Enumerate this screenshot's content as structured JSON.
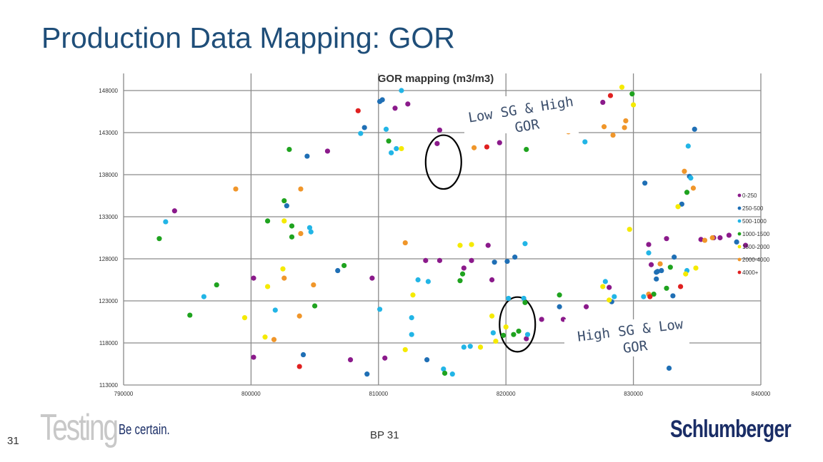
{
  "slide": {
    "title": "Production Data Mapping: GOR",
    "page_number": "31",
    "footer_center": "BP   31",
    "footer_logo_word": "Testing",
    "footer_tagline": "Be certain.",
    "brand": "Schlumberger"
  },
  "chart_data": {
    "type": "scatter",
    "title": "GOR mapping (m3/m3)",
    "xlabel": "",
    "ylabel": "",
    "xlim": [
      790000,
      840000
    ],
    "ylim": [
      113000,
      148000
    ],
    "x_ticks": [
      "790000",
      "800000",
      "810000",
      "820000",
      "830000",
      "840000"
    ],
    "y_ticks": [
      "113000",
      "118000",
      "123000",
      "128000",
      "133000",
      "138000",
      "143000",
      "148000"
    ],
    "grid": true,
    "legend_position": "right",
    "series": [
      {
        "name": "0-250",
        "color": "#8b1a8b",
        "points": [
          [
            794000,
            133700
          ],
          [
            800200,
            125700
          ],
          [
            800200,
            116300
          ],
          [
            806000,
            140800
          ],
          [
            807800,
            116000
          ],
          [
            809500,
            125700
          ],
          [
            810500,
            116200
          ],
          [
            811300,
            145900
          ],
          [
            812300,
            146400
          ],
          [
            813700,
            127800
          ],
          [
            814800,
            127800
          ],
          [
            814800,
            143300
          ],
          [
            814600,
            141700
          ],
          [
            816700,
            126900
          ],
          [
            817300,
            127800
          ],
          [
            818600,
            129600
          ],
          [
            818900,
            125500
          ],
          [
            819500,
            141800
          ],
          [
            821600,
            118500
          ],
          [
            822800,
            120800
          ],
          [
            824500,
            120800
          ],
          [
            826300,
            122300
          ],
          [
            827600,
            146600
          ],
          [
            828100,
            124600
          ],
          [
            831200,
            129700
          ],
          [
            831400,
            127300
          ],
          [
            832600,
            130400
          ],
          [
            835300,
            130300
          ],
          [
            836300,
            130500
          ],
          [
            836800,
            130500
          ],
          [
            837500,
            130800
          ],
          [
            838800,
            129600
          ]
        ]
      },
      {
        "name": "250-500",
        "color": "#1f6fb5",
        "points": [
          [
            802800,
            134300
          ],
          [
            804100,
            116600
          ],
          [
            804400,
            140200
          ],
          [
            806800,
            126600
          ],
          [
            808900,
            143600
          ],
          [
            809100,
            114300
          ],
          [
            810100,
            146700
          ],
          [
            810300,
            146900
          ],
          [
            813800,
            116000
          ],
          [
            819100,
            127600
          ],
          [
            820100,
            127700
          ],
          [
            820700,
            128200
          ],
          [
            824200,
            122300
          ],
          [
            828300,
            122900
          ],
          [
            830900,
            137000
          ],
          [
            831800,
            125600
          ],
          [
            831800,
            126400
          ],
          [
            831900,
            126500
          ],
          [
            832200,
            126600
          ],
          [
            832800,
            115000
          ],
          [
            833100,
            123600
          ],
          [
            833200,
            128200
          ],
          [
            833800,
            134500
          ],
          [
            834400,
            137800
          ],
          [
            834800,
            143400
          ],
          [
            838100,
            130000
          ]
        ]
      },
      {
        "name": "500-1000",
        "color": "#22b5e6",
        "points": [
          [
            793300,
            132400
          ],
          [
            796300,
            123500
          ],
          [
            801900,
            121900
          ],
          [
            804600,
            131700
          ],
          [
            804700,
            131200
          ],
          [
            808600,
            142900
          ],
          [
            810100,
            122000
          ],
          [
            810600,
            143400
          ],
          [
            811000,
            140600
          ],
          [
            811400,
            141100
          ],
          [
            811800,
            148000
          ],
          [
            812600,
            121000
          ],
          [
            812600,
            119000
          ],
          [
            813100,
            125500
          ],
          [
            813900,
            125300
          ],
          [
            815100,
            114900
          ],
          [
            815800,
            114300
          ],
          [
            816700,
            117500
          ],
          [
            817200,
            117600
          ],
          [
            819000,
            119200
          ],
          [
            820200,
            123300
          ],
          [
            821400,
            123300
          ],
          [
            821500,
            129800
          ],
          [
            821700,
            119000
          ],
          [
            826200,
            141900
          ],
          [
            827800,
            125300
          ],
          [
            828500,
            123500
          ],
          [
            830800,
            123500
          ],
          [
            831200,
            128700
          ],
          [
            834200,
            126600
          ],
          [
            834500,
            137600
          ],
          [
            834300,
            141400
          ]
        ]
      },
      {
        "name": "1000-1500",
        "color": "#1fa31f",
        "points": [
          [
            792800,
            130400
          ],
          [
            795200,
            121300
          ],
          [
            797300,
            124900
          ],
          [
            801300,
            132500
          ],
          [
            802600,
            134900
          ],
          [
            803000,
            141000
          ],
          [
            803200,
            131900
          ],
          [
            803200,
            130600
          ],
          [
            805000,
            122400
          ],
          [
            807300,
            127200
          ],
          [
            810800,
            142000
          ],
          [
            815200,
            114400
          ],
          [
            816600,
            126200
          ],
          [
            816400,
            125400
          ],
          [
            819800,
            118900
          ],
          [
            820600,
            119000
          ],
          [
            821000,
            119400
          ],
          [
            821500,
            122800
          ],
          [
            821600,
            141000
          ],
          [
            824200,
            123700
          ],
          [
            829900,
            147600
          ],
          [
            831600,
            123800
          ],
          [
            832600,
            124500
          ],
          [
            832900,
            127000
          ],
          [
            834200,
            135900
          ]
        ]
      },
      {
        "name": "1500-2000",
        "color": "#f5ea00",
        "points": [
          [
            799500,
            121000
          ],
          [
            801100,
            118700
          ],
          [
            801300,
            124700
          ],
          [
            802500,
            126800
          ],
          [
            802600,
            132500
          ],
          [
            811800,
            141100
          ],
          [
            812100,
            117200
          ],
          [
            812700,
            123700
          ],
          [
            816400,
            129600
          ],
          [
            817300,
            129700
          ],
          [
            818000,
            117500
          ],
          [
            818900,
            121200
          ],
          [
            819200,
            118200
          ],
          [
            820000,
            119900
          ],
          [
            827600,
            124700
          ],
          [
            828100,
            123100
          ],
          [
            829100,
            148400
          ],
          [
            829700,
            131500
          ],
          [
            830000,
            146300
          ],
          [
            833500,
            134200
          ],
          [
            834100,
            126200
          ],
          [
            834900,
            126900
          ]
        ]
      },
      {
        "name": "2000-4000",
        "color": "#f0962a",
        "points": [
          [
            798800,
            136300
          ],
          [
            801800,
            118400
          ],
          [
            802600,
            125700
          ],
          [
            803900,
            131000
          ],
          [
            803800,
            121200
          ],
          [
            803900,
            136300
          ],
          [
            804900,
            124900
          ],
          [
            812100,
            129900
          ],
          [
            817500,
            141200
          ],
          [
            823200,
            143700
          ],
          [
            824900,
            143100
          ],
          [
            827700,
            143700
          ],
          [
            828400,
            142700
          ],
          [
            829300,
            143600
          ],
          [
            829400,
            144400
          ],
          [
            831200,
            123800
          ],
          [
            832100,
            127400
          ],
          [
            834000,
            138400
          ],
          [
            834700,
            136400
          ],
          [
            835600,
            130200
          ],
          [
            836200,
            130500
          ]
        ]
      },
      {
        "name": "4000+",
        "color": "#e02020",
        "points": [
          [
            803800,
            115200
          ],
          [
            808400,
            145600
          ],
          [
            818500,
            141300
          ],
          [
            820300,
            144200
          ],
          [
            828200,
            147400
          ],
          [
            831300,
            123500
          ],
          [
            833700,
            124700
          ]
        ]
      }
    ],
    "annotations": [
      {
        "line1": "Low SG & High",
        "line2": "GOR"
      },
      {
        "line1": "High SG & Low",
        "line2": "GOR"
      }
    ],
    "highlight_circles": [
      {
        "cx": 815100,
        "cy": 139500,
        "rx": 1400,
        "ry": 3200
      },
      {
        "cx": 820900,
        "cy": 120200,
        "rx": 1400,
        "ry": 3250
      }
    ]
  }
}
